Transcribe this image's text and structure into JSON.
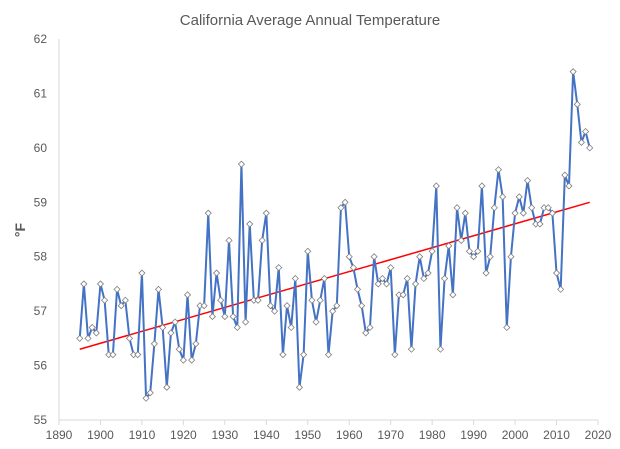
{
  "chart_data": {
    "type": "line",
    "title": "California Average Annual Temperature",
    "xlabel": "",
    "ylabel": "°F",
    "xlim": [
      1890,
      2020
    ],
    "ylim": [
      55,
      62
    ],
    "xticks": [
      1890,
      1900,
      1910,
      1920,
      1930,
      1940,
      1950,
      1960,
      1970,
      1980,
      1990,
      2000,
      2010,
      2020
    ],
    "yticks": [
      55,
      56,
      57,
      58,
      59,
      60,
      61,
      62
    ],
    "grid": false,
    "legend": "none",
    "colors": {
      "series": "#4472C4",
      "trend": "#FF0000",
      "marker_fill": "#FFFFFF",
      "marker_stroke": "#7F7F7F"
    },
    "x_start": 1895,
    "values": [
      56.5,
      57.5,
      56.5,
      56.7,
      56.6,
      57.5,
      57.2,
      56.2,
      56.2,
      57.4,
      57.1,
      57.2,
      56.5,
      56.2,
      56.2,
      57.7,
      55.4,
      55.5,
      56.4,
      57.4,
      56.7,
      55.6,
      56.6,
      56.8,
      56.3,
      56.1,
      57.3,
      56.1,
      56.4,
      57.1,
      57.1,
      58.8,
      56.9,
      57.7,
      57.2,
      56.9,
      58.3,
      56.9,
      56.7,
      59.7,
      56.8,
      58.6,
      57.2,
      57.2,
      58.3,
      58.8,
      57.1,
      57.0,
      57.8,
      56.2,
      57.1,
      56.7,
      57.6,
      55.6,
      56.2,
      58.1,
      57.2,
      56.8,
      57.2,
      57.6,
      56.2,
      57.0,
      57.1,
      58.9,
      59.0,
      58.0,
      57.8,
      57.4,
      57.1,
      56.6,
      56.7,
      58.0,
      57.5,
      57.6,
      57.5,
      57.8,
      56.2,
      57.3,
      57.3,
      57.6,
      56.3,
      57.5,
      58.0,
      57.6,
      57.7,
      58.1,
      59.3,
      56.3,
      57.6,
      58.2,
      57.3,
      58.9,
      58.3,
      58.8,
      58.1,
      58.0,
      58.1,
      59.3,
      57.7,
      58.0,
      58.9,
      59.6,
      59.1,
      56.7,
      58.0,
      58.8,
      59.1,
      58.8,
      59.4,
      58.9,
      58.6,
      58.6,
      58.9,
      58.9,
      58.8,
      57.7,
      57.4,
      59.5,
      59.3,
      61.4,
      60.8,
      60.1,
      60.3,
      60.0
    ],
    "trendline": {
      "type": "linear",
      "start": [
        1895,
        56.3
      ],
      "end": [
        2018,
        59.0
      ]
    }
  }
}
